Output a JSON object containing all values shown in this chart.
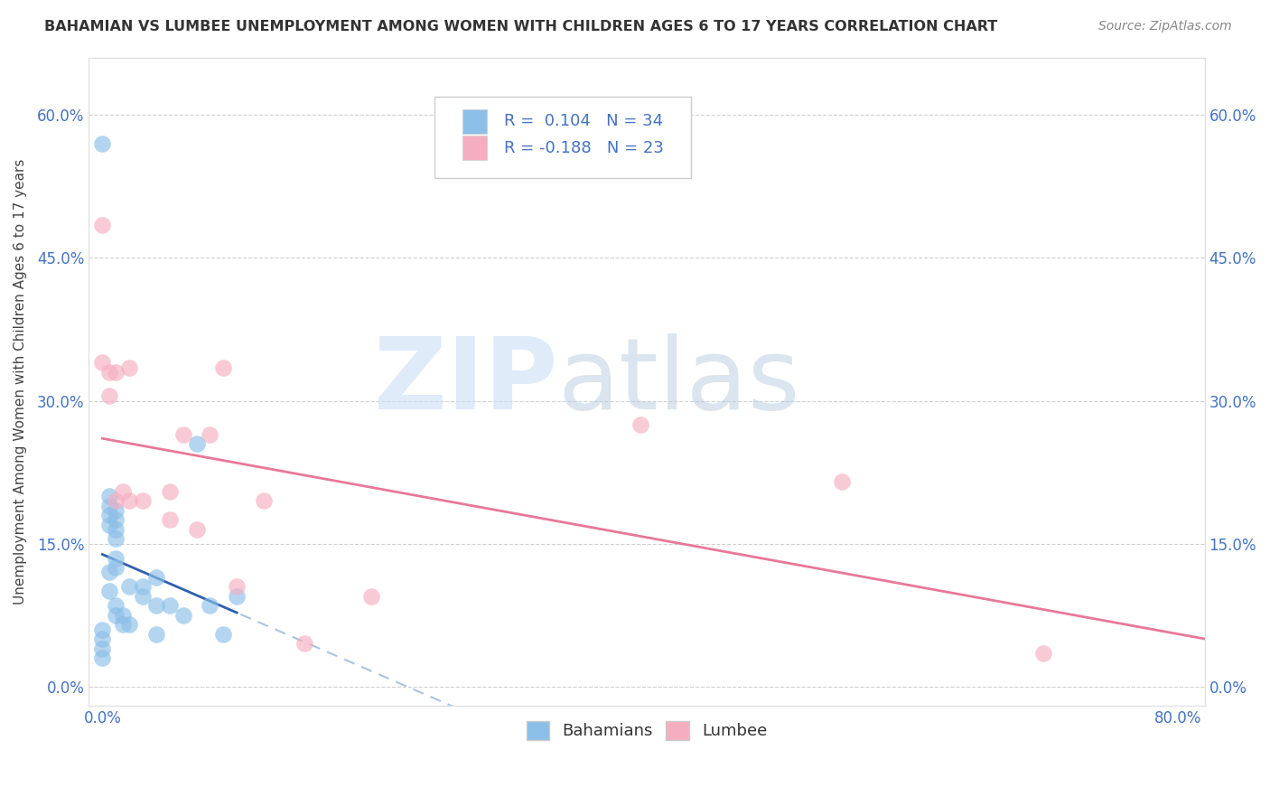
{
  "title": "BAHAMIAN VS LUMBEE UNEMPLOYMENT AMONG WOMEN WITH CHILDREN AGES 6 TO 17 YEARS CORRELATION CHART",
  "source": "Source: ZipAtlas.com",
  "ylabel": "Unemployment Among Women with Children Ages 6 to 17 years",
  "xlabel_ticks_show": [
    "0.0%",
    "80.0%"
  ],
  "xlabel_ticks_pos": [
    0.0,
    0.8
  ],
  "ylabel_ticks": [
    "0.0%",
    "15.0%",
    "30.0%",
    "45.0%",
    "60.0%"
  ],
  "ylabel_vals": [
    0.0,
    0.15,
    0.3,
    0.45,
    0.6
  ],
  "xlim": [
    -0.01,
    0.82
  ],
  "ylim": [
    -0.02,
    0.66
  ],
  "bahamian_color": "#8bbfe8",
  "lumbee_color": "#f5aec0",
  "bahamian_R": 0.104,
  "bahamian_N": 34,
  "lumbee_R": -0.188,
  "lumbee_N": 23,
  "legend_label1": "Bahamians",
  "legend_label2": "Lumbee",
  "bahamian_x": [
    0.0,
    0.0,
    0.0,
    0.0,
    0.0,
    0.005,
    0.005,
    0.005,
    0.005,
    0.005,
    0.005,
    0.01,
    0.01,
    0.01,
    0.01,
    0.01,
    0.01,
    0.01,
    0.01,
    0.015,
    0.015,
    0.02,
    0.02,
    0.03,
    0.03,
    0.04,
    0.04,
    0.04,
    0.05,
    0.06,
    0.07,
    0.08,
    0.09,
    0.1
  ],
  "bahamian_y": [
    0.57,
    0.06,
    0.05,
    0.04,
    0.03,
    0.2,
    0.19,
    0.18,
    0.17,
    0.12,
    0.1,
    0.185,
    0.175,
    0.165,
    0.155,
    0.135,
    0.125,
    0.085,
    0.075,
    0.075,
    0.065,
    0.105,
    0.065,
    0.105,
    0.095,
    0.115,
    0.085,
    0.055,
    0.085,
    0.075,
    0.255,
    0.085,
    0.055,
    0.095
  ],
  "lumbee_x": [
    0.0,
    0.0,
    0.005,
    0.005,
    0.01,
    0.01,
    0.015,
    0.02,
    0.02,
    0.03,
    0.05,
    0.05,
    0.06,
    0.07,
    0.08,
    0.09,
    0.1,
    0.12,
    0.15,
    0.2,
    0.4,
    0.55,
    0.7
  ],
  "lumbee_y": [
    0.485,
    0.34,
    0.33,
    0.305,
    0.33,
    0.195,
    0.205,
    0.195,
    0.335,
    0.195,
    0.205,
    0.175,
    0.265,
    0.165,
    0.265,
    0.335,
    0.105,
    0.195,
    0.045,
    0.095,
    0.275,
    0.215,
    0.035
  ],
  "trend_b_x0": 0.0,
  "trend_b_x1": 0.82,
  "trend_l_x0": 0.0,
  "trend_l_x1": 0.82
}
